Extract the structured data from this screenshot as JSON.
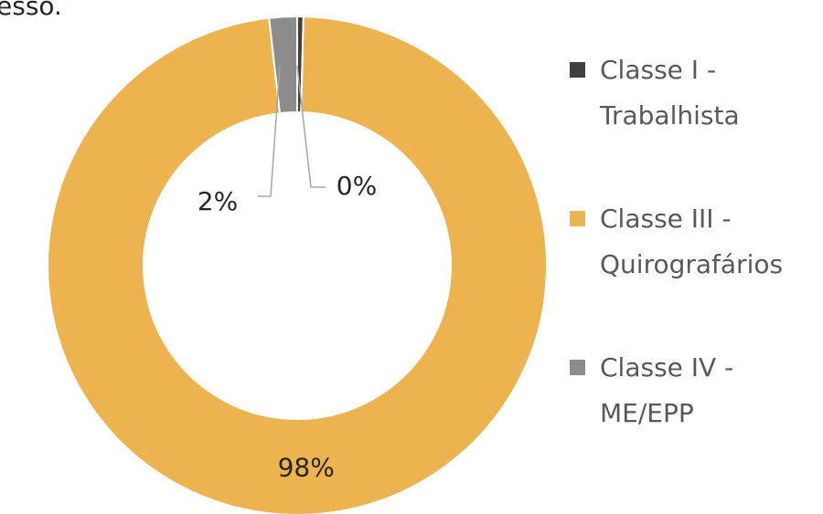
{
  "chart_data": {
    "type": "donut",
    "title": "esso.",
    "categories": [
      "Classe I - Trabalhista",
      "Classe III - Quirografários",
      "Classe IV - ME/EPP"
    ],
    "values": [
      0.4,
      97.8,
      1.8
    ],
    "value_labels": [
      "0%",
      "98%",
      "2%"
    ],
    "colors": [
      "#404040",
      "#edb34f",
      "#8c8c8c"
    ],
    "legend": "right"
  }
}
